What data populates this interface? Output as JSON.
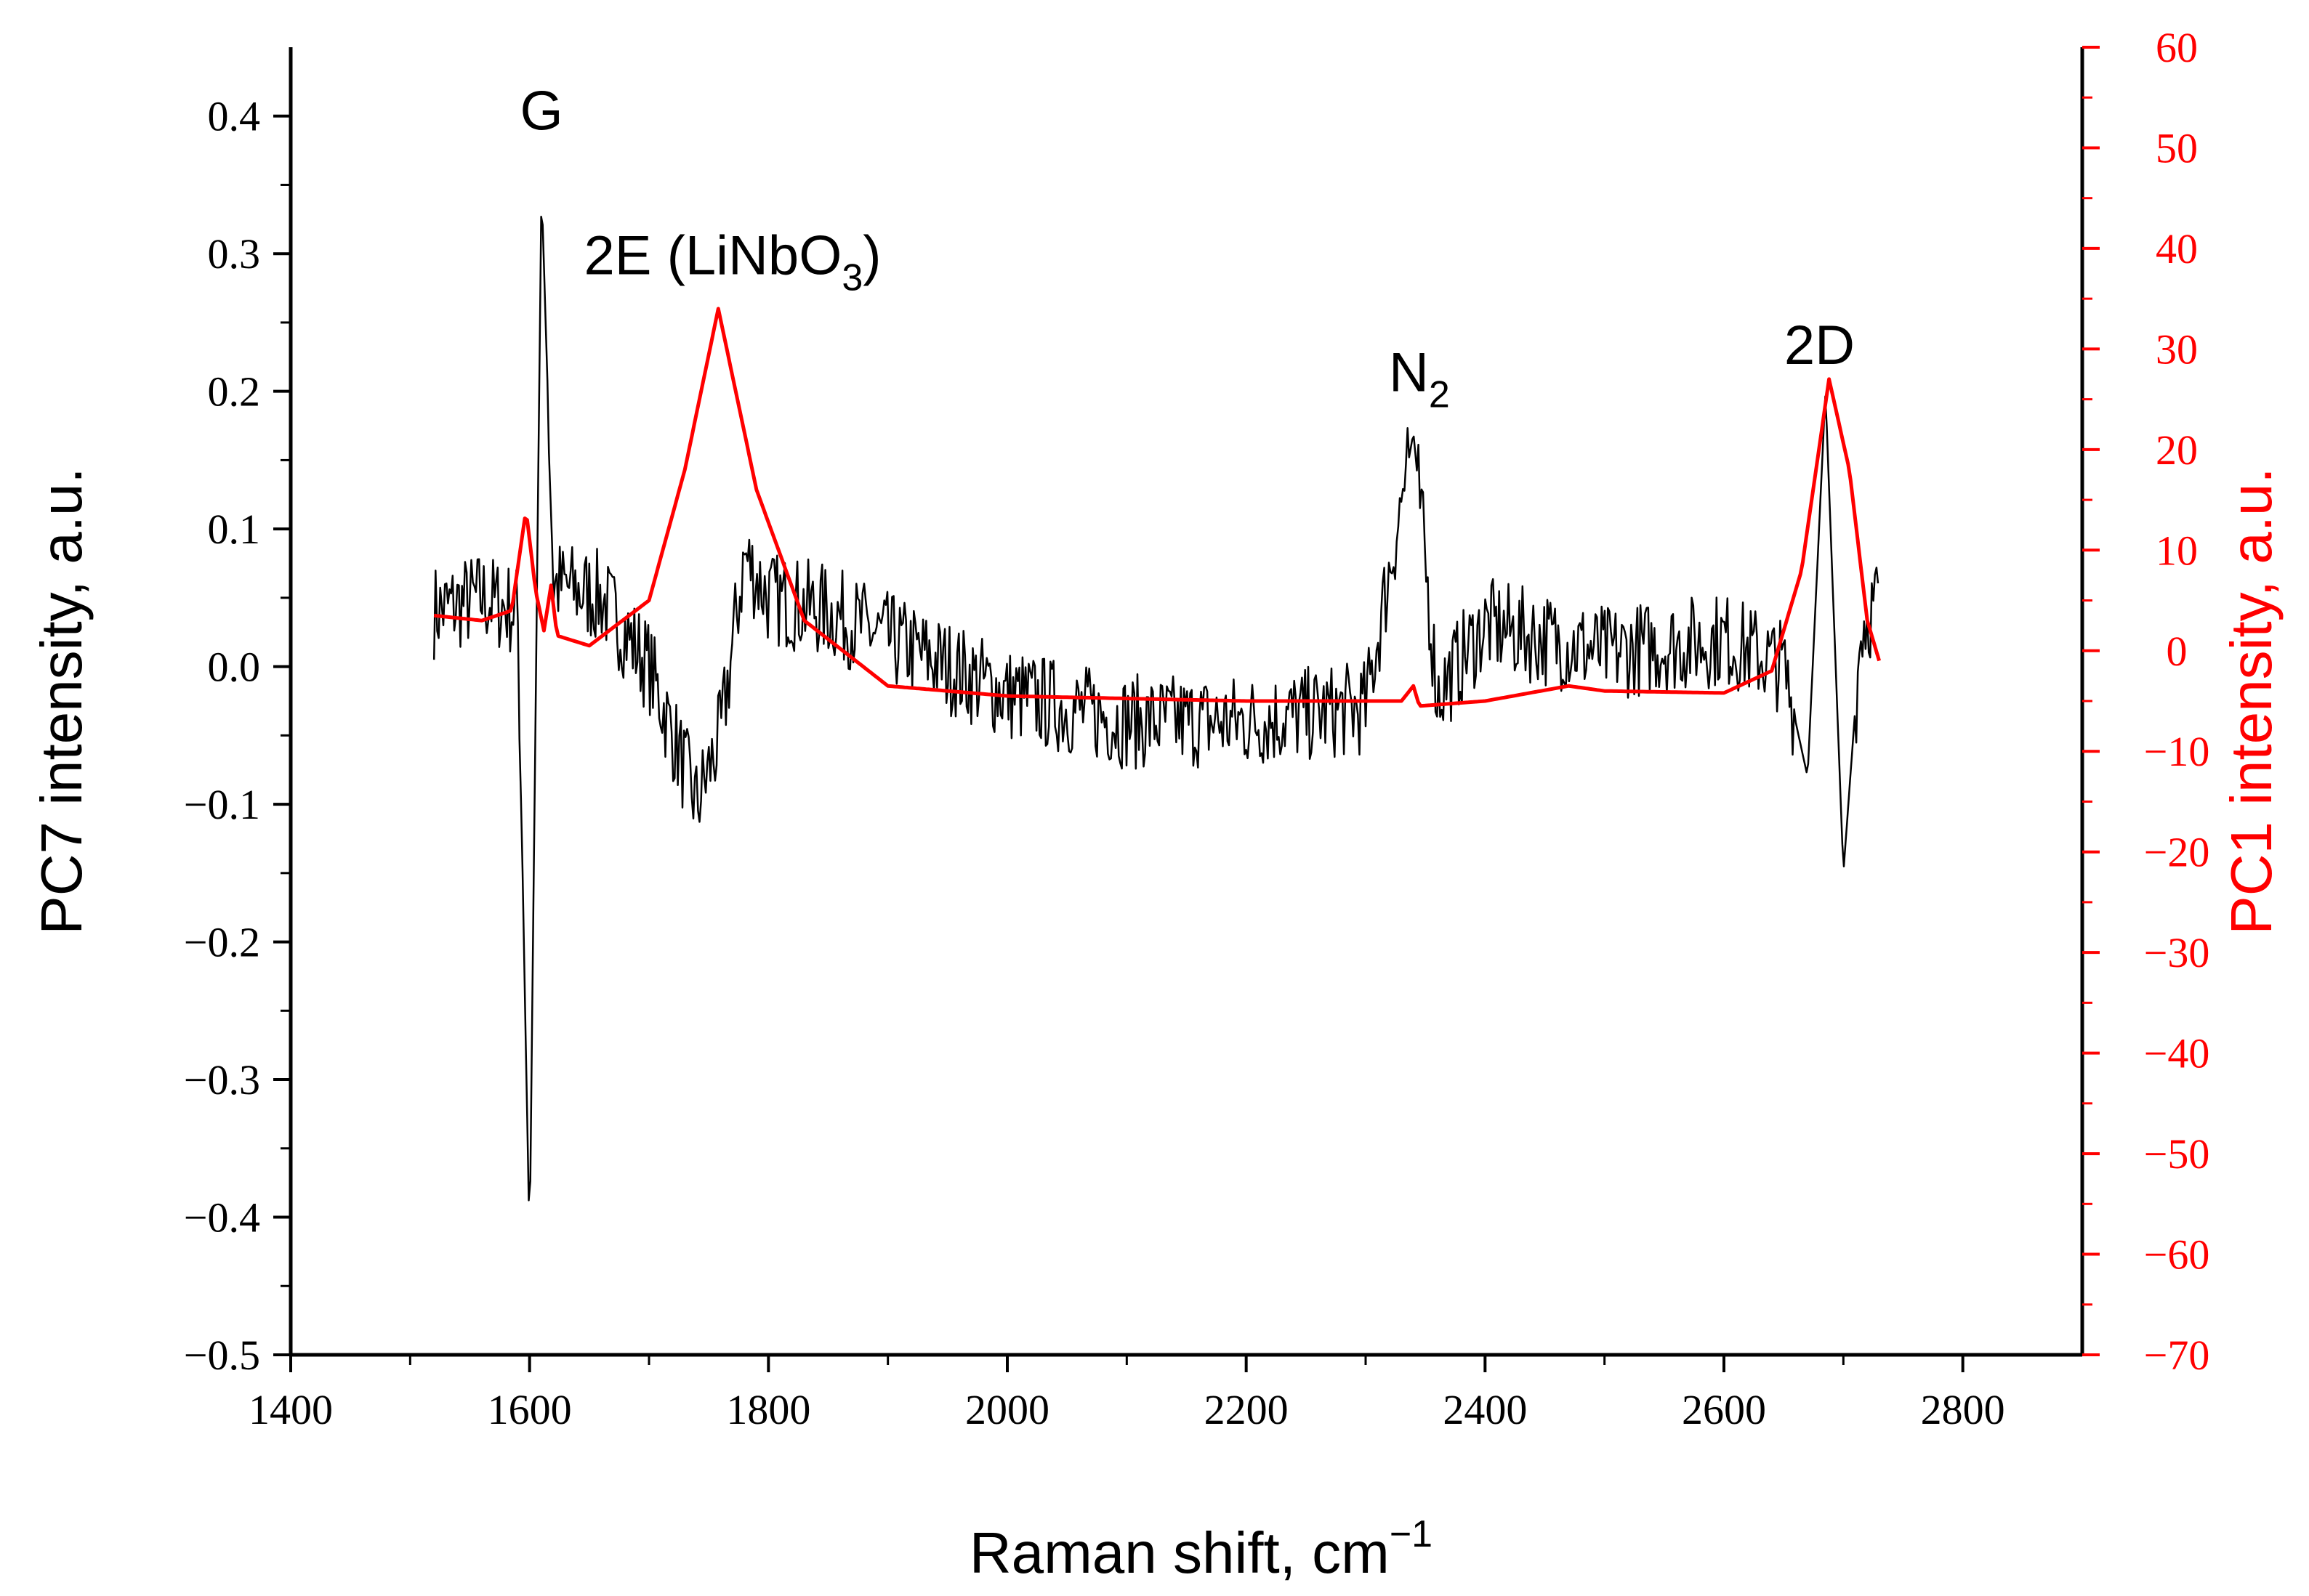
{
  "chart_data": {
    "type": "line",
    "xlabel": "Raman shift, cm",
    "xlabel_sup": "−1",
    "ylabel_left": "PC7 intensity, a.u.",
    "ylabel_right": "PC1 intensity, a.u.",
    "xlim": [
      1400,
      2900
    ],
    "ylim_left": [
      -0.5,
      0.45
    ],
    "ylim_right": [
      -70,
      60
    ],
    "x_ticks": [
      1400,
      1600,
      1800,
      2000,
      2200,
      2400,
      2600,
      2800
    ],
    "x_tick_labels": [
      "1400",
      "1600",
      "1800",
      "2000",
      "2200",
      "2400",
      "2600",
      "2800"
    ],
    "y_left_ticks": [
      -0.5,
      -0.4,
      -0.3,
      -0.2,
      -0.1,
      0.0,
      0.1,
      0.2,
      0.3,
      0.4
    ],
    "y_left_tick_labels": [
      "−0.5",
      "−0.4",
      "−0.3",
      "−0.2",
      "−0.1",
      "0.0",
      "0.1",
      "0.2",
      "0.3",
      "0.4"
    ],
    "y_right_ticks": [
      -70,
      -60,
      -50,
      -40,
      -30,
      -20,
      -10,
      0,
      10,
      20,
      30,
      40,
      50,
      60
    ],
    "y_right_tick_labels": [
      "−70",
      "−60",
      "−50",
      "−40",
      "−30",
      "−20",
      "−10",
      "0",
      "10",
      "20",
      "30",
      "40",
      "50",
      "60"
    ],
    "series": [
      {
        "name": "PC7",
        "axis": "left",
        "color": "#000000",
        "description_points": [
          [
            1520,
            0.04
          ],
          [
            1560,
            0.05
          ],
          [
            1590,
            0.04
          ],
          [
            1600,
            -0.42
          ],
          [
            1610,
            0.35
          ],
          [
            1620,
            0.06
          ],
          [
            1660,
            0.05
          ],
          [
            1700,
            0.0
          ],
          [
            1740,
            -0.1
          ],
          [
            1760,
            -0.05
          ],
          [
            1780,
            0.08
          ],
          [
            1800,
            0.05
          ],
          [
            1850,
            0.04
          ],
          [
            1900,
            0.02
          ],
          [
            2000,
            -0.02
          ],
          [
            2100,
            -0.04
          ],
          [
            2200,
            -0.04
          ],
          [
            2300,
            -0.03
          ],
          [
            2340,
            0.17
          ],
          [
            2360,
            -0.02
          ],
          [
            2400,
            0.03
          ],
          [
            2450,
            0.02
          ],
          [
            2500,
            0.01
          ],
          [
            2600,
            0.02
          ],
          [
            2650,
            0.0
          ],
          [
            2670,
            -0.08
          ],
          [
            2685,
            0.2
          ],
          [
            2700,
            -0.15
          ],
          [
            2715,
            0.03
          ],
          [
            2730,
            0.05
          ]
        ]
      },
      {
        "name": "PC1",
        "axis": "right",
        "color": "#ff0000",
        "description_points": [
          [
            1520,
            3.5
          ],
          [
            1560,
            3
          ],
          [
            1585,
            4
          ],
          [
            1597,
            14
          ],
          [
            1605,
            6
          ],
          [
            1612,
            2
          ],
          [
            1618,
            6.5
          ],
          [
            1623,
            1.5
          ],
          [
            1650,
            0.5
          ],
          [
            1700,
            5
          ],
          [
            1730,
            18
          ],
          [
            1758,
            34
          ],
          [
            1790,
            16
          ],
          [
            1830,
            3
          ],
          [
            1900,
            -3.5
          ],
          [
            2000,
            -4.5
          ],
          [
            2200,
            -5
          ],
          [
            2330,
            -5
          ],
          [
            2340,
            -3.5
          ],
          [
            2345,
            -5.5
          ],
          [
            2400,
            -5
          ],
          [
            2470,
            -3.5
          ],
          [
            2500,
            -4
          ],
          [
            2600,
            -4.2
          ],
          [
            2640,
            -2
          ],
          [
            2665,
            8
          ],
          [
            2688,
            27
          ],
          [
            2705,
            18
          ],
          [
            2720,
            3
          ],
          [
            2730,
            -1
          ]
        ]
      }
    ],
    "annotations": [
      {
        "text": "G",
        "sub": "",
        "x": 1610,
        "y_left": 0.39
      },
      {
        "text": "2E (LiNbO",
        "sub": "3",
        "tail": ")",
        "x": 1770,
        "y_left": 0.285
      },
      {
        "text": "N",
        "sub": "2",
        "x": 2345,
        "y_left": 0.2
      },
      {
        "text": "2D",
        "sub": "",
        "x": 2680,
        "y_left": 0.22
      }
    ]
  }
}
